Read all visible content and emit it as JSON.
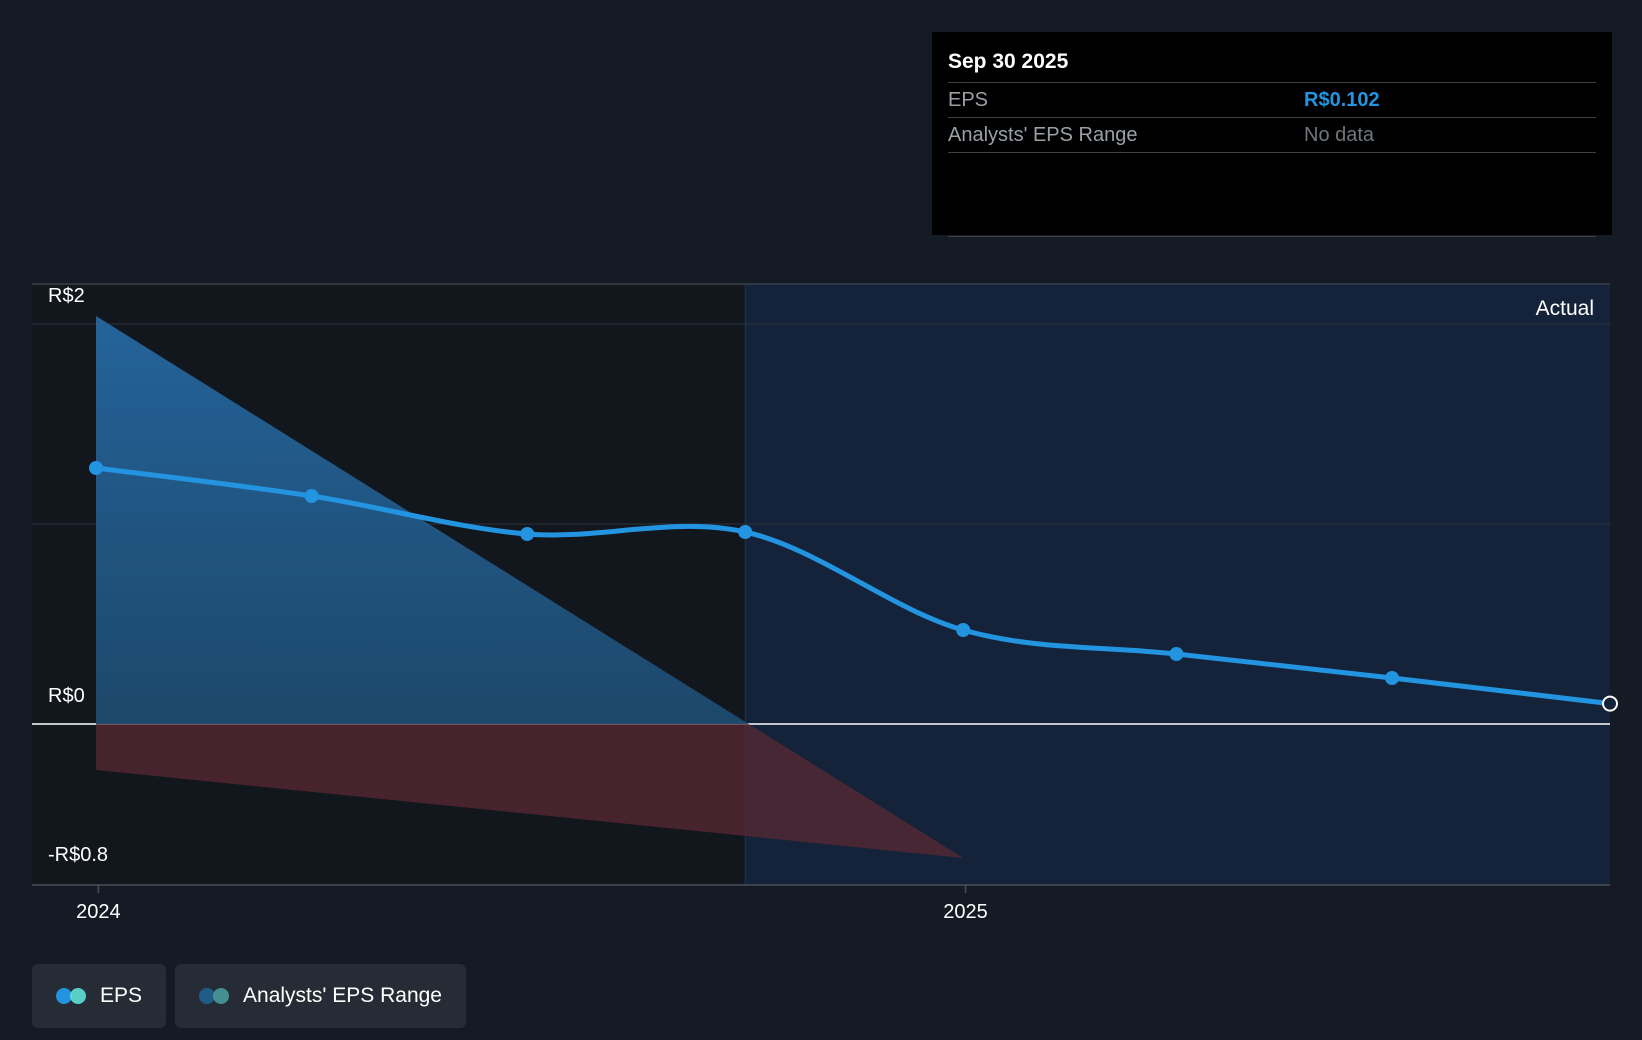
{
  "chart_data": {
    "type": "line",
    "x_tick_labels": [
      "2024",
      "2025"
    ],
    "y_tick_labels": [
      "R$2",
      "R$0",
      "-R$0.8"
    ],
    "ylim": [
      -0.8,
      2.2
    ],
    "actual_label": "Actual",
    "series": [
      {
        "name": "EPS",
        "color": "#2394df",
        "points": [
          {
            "date": "2023-12-31",
            "value": 1.28
          },
          {
            "date": "2024-03-31",
            "value": 1.14
          },
          {
            "date": "2024-06-30",
            "value": 0.95
          },
          {
            "date": "2024-09-30",
            "value": 0.96
          },
          {
            "date": "2024-12-31",
            "value": 0.47
          },
          {
            "date": "2025-03-31",
            "value": 0.35
          },
          {
            "date": "2025-06-30",
            "value": 0.23
          },
          {
            "date": "2025-09-30",
            "value": 0.102
          }
        ]
      },
      {
        "name": "Analysts' EPS Range",
        "color": "#2a6a9a",
        "low": [
          {
            "date": "2023-12-31",
            "value": -0.23
          },
          {
            "date": "2024-12-31",
            "value": -0.67
          }
        ],
        "high": [
          {
            "date": "2023-12-31",
            "value": 2.04
          },
          {
            "date": "2024-12-31",
            "value": -0.67
          }
        ]
      }
    ],
    "grid": true
  },
  "tooltip": {
    "date": "Sep 30 2025",
    "eps_label": "EPS",
    "eps_value": "R$0.102",
    "range_label": "Analysts' EPS Range",
    "range_value": "No data"
  },
  "legend": [
    {
      "label": "EPS",
      "colors": [
        "#2394df",
        "#5ee0d5"
      ]
    },
    {
      "label": "Analysts' EPS Range",
      "colors": [
        "#1f5d88",
        "#4a9a9a"
      ]
    }
  ]
}
